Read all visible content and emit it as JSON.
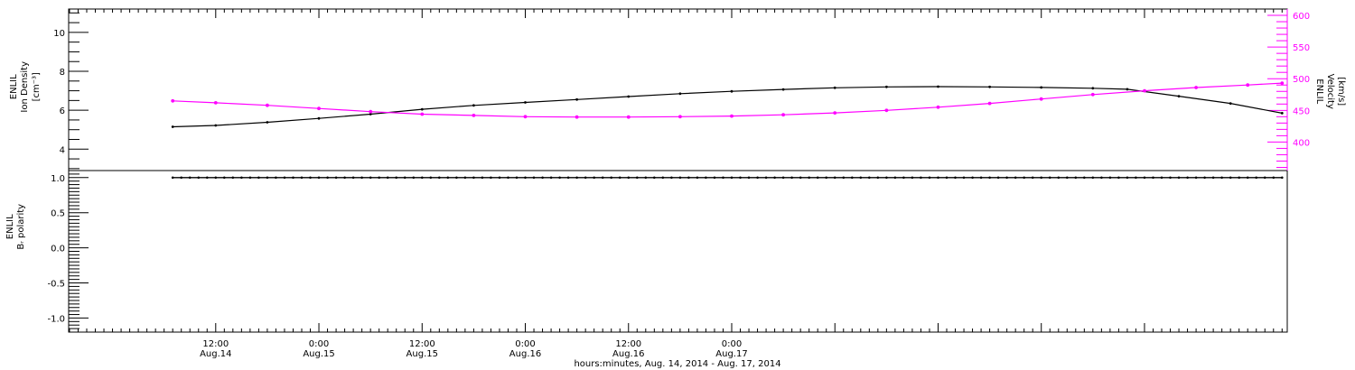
{
  "chart_data": [
    {
      "type": "line",
      "x_unit": "hours since Aug. 14, 2014 00:00",
      "ylabel_left": [
        "ENLIL",
        "Ion Density",
        "[cm⁻³]"
      ],
      "ylabel_right": [
        "ENLIL",
        "Velocity",
        "[km/s]"
      ],
      "ylim_left": [
        2.9,
        11.2
      ],
      "ylim_right": [
        355,
        610
      ],
      "yticks_left": [
        4,
        6,
        8,
        10
      ],
      "yticks_right": [
        400,
        450,
        500,
        550,
        600
      ],
      "series": [
        {
          "axis": "left",
          "color": "#000000",
          "values": [
            [
              7,
              5.15
            ],
            [
              12,
              5.22
            ],
            [
              18,
              5.38
            ],
            [
              24,
              5.58
            ],
            [
              30,
              5.8
            ],
            [
              36,
              6.05
            ],
            [
              42,
              6.25
            ],
            [
              48,
              6.4
            ],
            [
              54,
              6.55
            ],
            [
              60,
              6.7
            ],
            [
              66,
              6.85
            ],
            [
              72,
              6.97
            ],
            [
              78,
              7.07
            ],
            [
              84,
              7.15
            ],
            [
              90,
              7.2
            ],
            [
              96,
              7.21
            ],
            [
              102,
              7.2
            ],
            [
              108,
              7.17
            ],
            [
              114,
              7.13
            ],
            [
              118,
              7.08
            ],
            [
              124,
              6.72
            ],
            [
              130,
              6.35
            ],
            [
              136,
              5.85
            ]
          ]
        },
        {
          "axis": "right",
          "color": "#ff00ff",
          "values": [
            [
              7,
              465
            ],
            [
              12,
              462
            ],
            [
              18,
              458
            ],
            [
              24,
              453
            ],
            [
              30,
              448
            ],
            [
              36,
              444
            ],
            [
              42,
              442
            ],
            [
              48,
              440
            ],
            [
              54,
              439.5
            ],
            [
              60,
              439.5
            ],
            [
              66,
              440
            ],
            [
              72,
              441
            ],
            [
              78,
              443
            ],
            [
              84,
              446
            ],
            [
              90,
              450
            ],
            [
              96,
              455
            ],
            [
              102,
              461
            ],
            [
              108,
              468
            ],
            [
              114,
              475
            ],
            [
              120,
              481
            ],
            [
              126,
              486
            ],
            [
              132,
              490
            ],
            [
              136,
              493
            ]
          ]
        }
      ]
    },
    {
      "type": "line",
      "ylabel": [
        "ENLIL",
        "Bᵣ polarity"
      ],
      "ylim": [
        -1.2,
        1.1
      ],
      "yticks": [
        -1.0,
        -0.5,
        0.0,
        0.5,
        1.0
      ],
      "series": [
        {
          "color": "#000000",
          "values": [
            [
              7,
              1.0
            ],
            [
              136,
              1.0
            ]
          ]
        }
      ]
    }
  ],
  "x_axis": {
    "range": [
      -5.1,
      136.6
    ],
    "major_ticks_hours": [
      12,
      24,
      36,
      48,
      60,
      72,
      84,
      96,
      108,
      120
    ],
    "tick_labels": [
      {
        "h": 12,
        "time": "12:00",
        "date": "Aug.14"
      },
      {
        "h": 24,
        "time": "0:00",
        "date": "Aug.15"
      },
      {
        "h": 36,
        "time": "12:00",
        "date": "Aug.15"
      },
      {
        "h": 48,
        "time": "0:00",
        "date": "Aug.16"
      },
      {
        "h": 60,
        "time": "12:00",
        "date": "Aug.16"
      },
      {
        "h": 72,
        "time": "0:00",
        "date": "Aug.17"
      }
    ],
    "xlabel": "hours:minutes, Aug. 14, 2014 - Aug. 17, 2014"
  },
  "colors": {
    "primary": "#000000",
    "velocity": "#ff00ff"
  }
}
